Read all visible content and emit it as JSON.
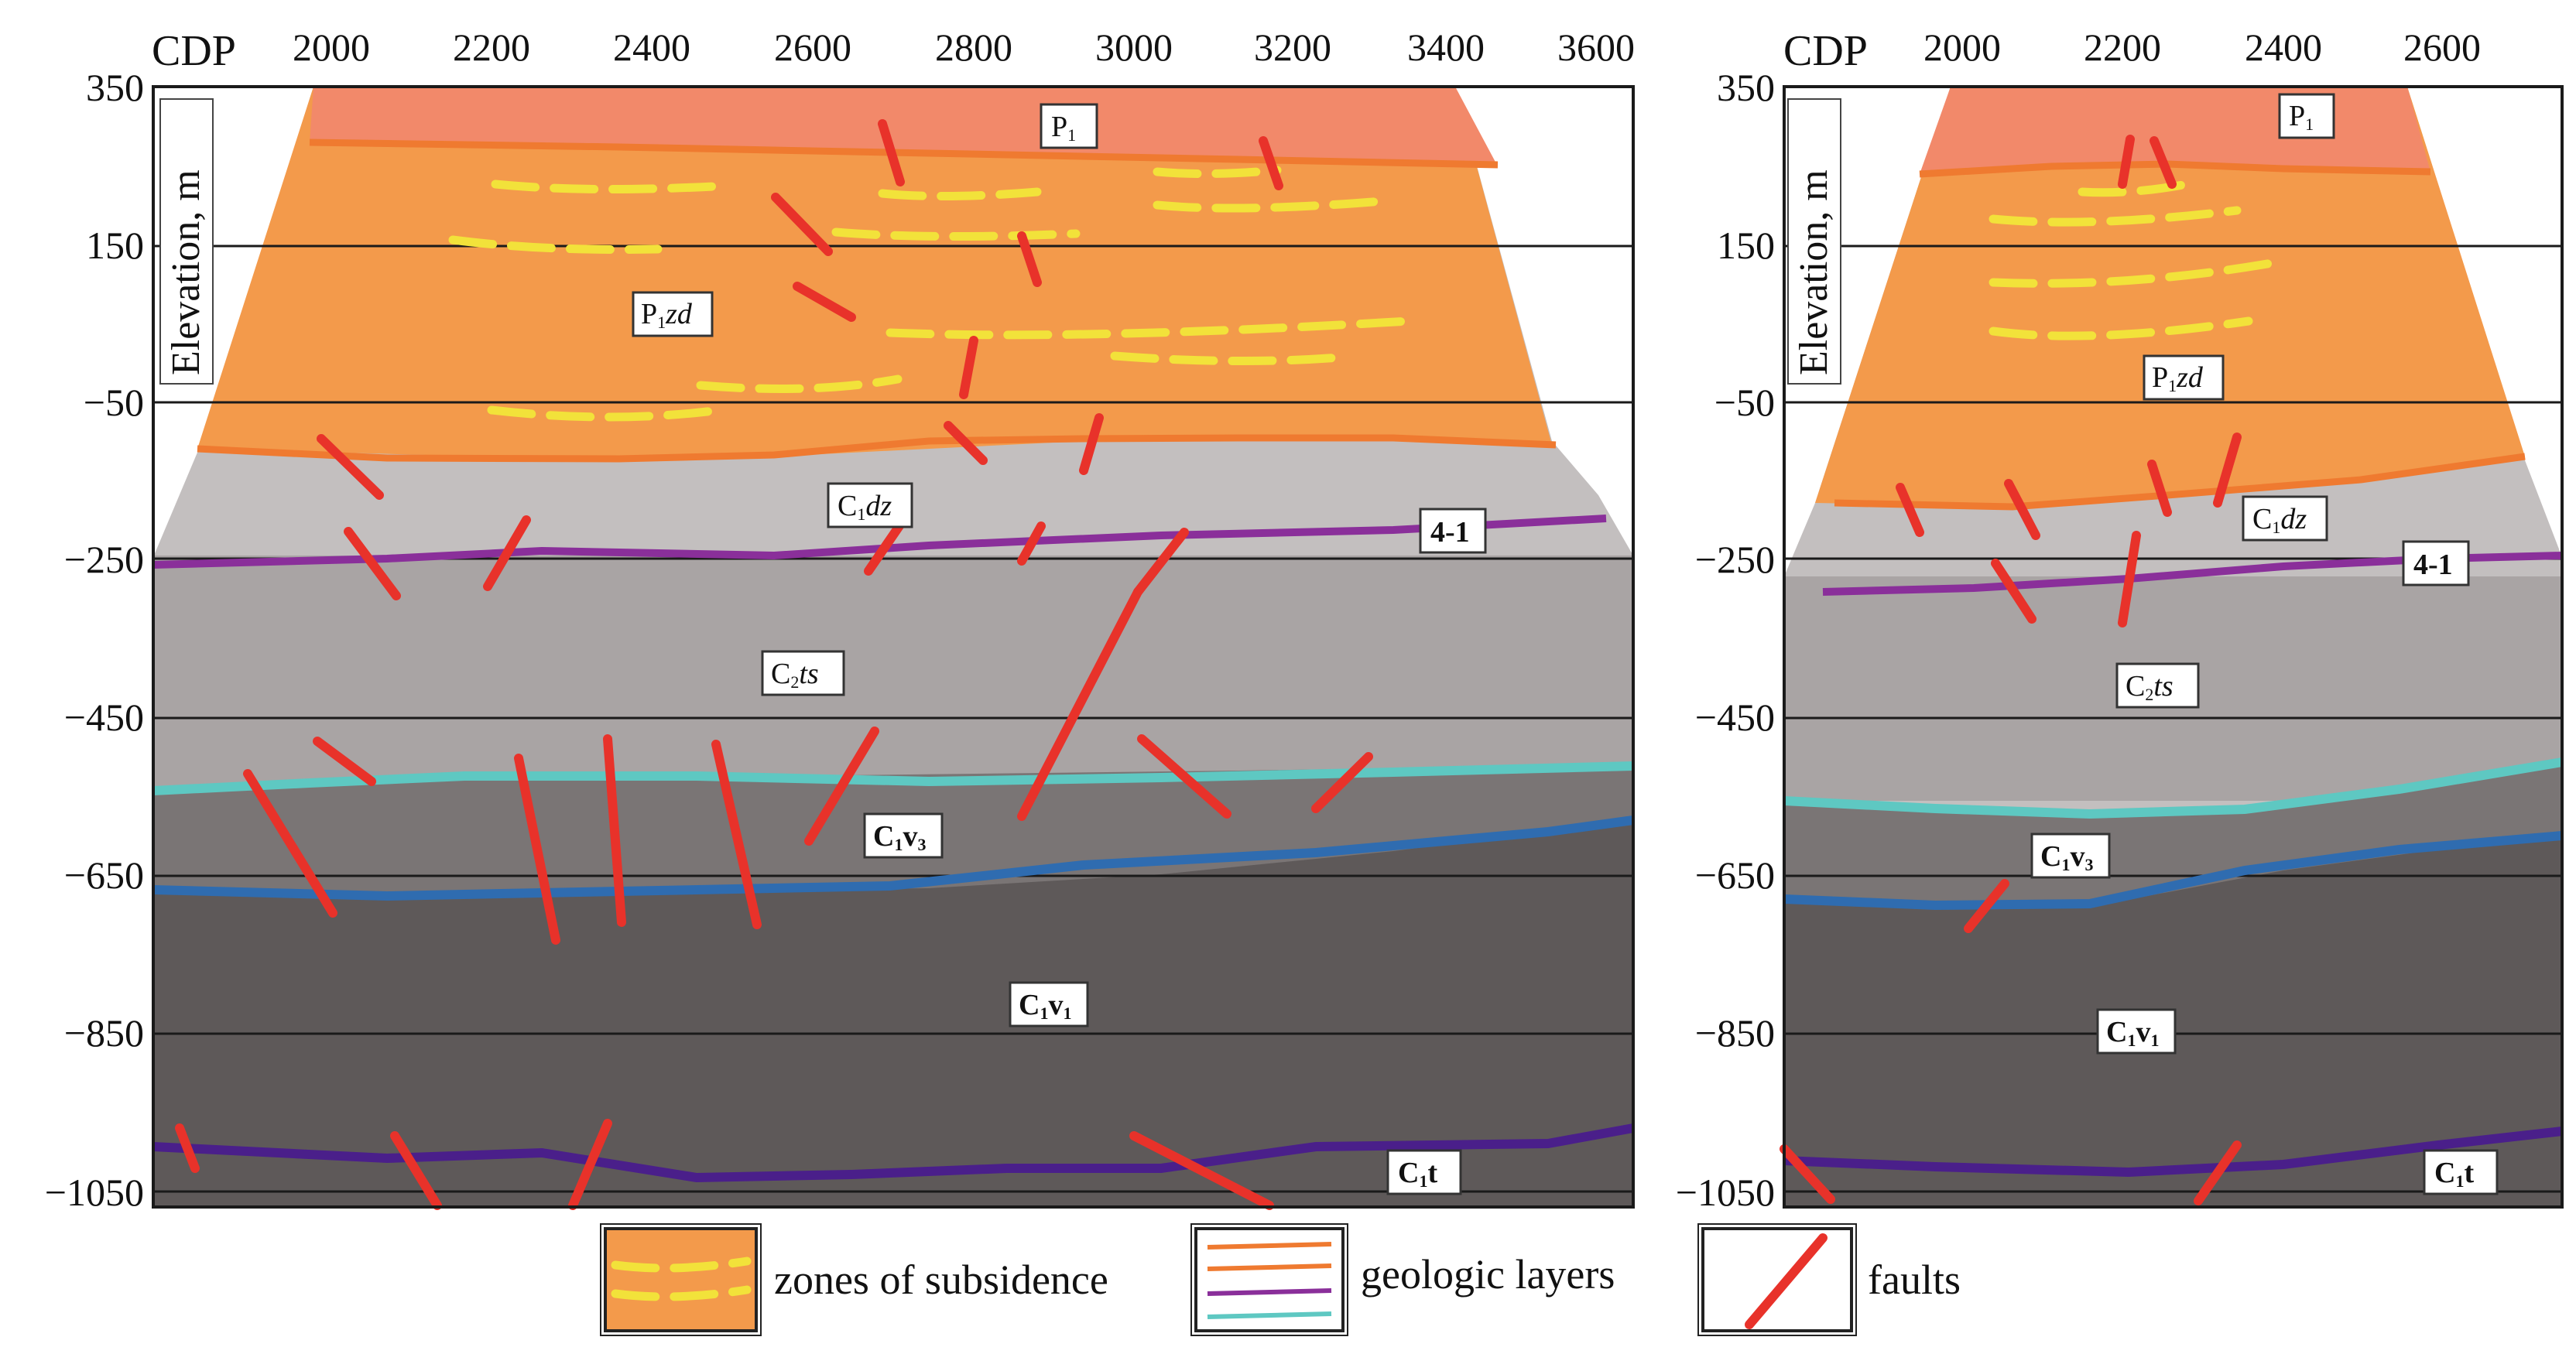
{
  "figure": {
    "panels": [
      {
        "id": "left",
        "x_label": "CDP",
        "y_label": "Elevation, m",
        "x_ticks": [
          "2000",
          "2200",
          "2400",
          "2600",
          "2800",
          "3000",
          "3200",
          "3400",
          "3600"
        ],
        "y_ticks": [
          "350",
          "150",
          "−50",
          "−250",
          "−450",
          "−650",
          "−850",
          "−1050"
        ],
        "formations": {
          "p1": "P",
          "p1zd": "P",
          "c1dz": "C",
          "label41": "4-1",
          "c2ts": "C",
          "c1v3": "C",
          "c1v1": "C",
          "c1t": "C"
        }
      },
      {
        "id": "right",
        "x_label": "CDP",
        "y_label": "Elevation, m",
        "x_ticks": [
          "2000",
          "2200",
          "2400",
          "2600"
        ],
        "y_ticks": [
          "350",
          "150",
          "−50",
          "−250",
          "−450",
          "−650",
          "−850",
          "−1050"
        ],
        "formations": {
          "p1": "P",
          "p1zd": "P",
          "c1dz": "C",
          "label41": "4-1",
          "c2ts": "C",
          "c1v3": "C",
          "c1v1": "C",
          "c1t": "C"
        }
      }
    ],
    "legend": {
      "subsidence": "zones of subsidence",
      "layers": "geologic layers",
      "faults": "faults"
    },
    "colors": {
      "subsidence_fill": "#f39a4b",
      "subsidence_upper": "#f2896a",
      "subsidence_dash": "#f2e23a",
      "layer_orange": "#ef7a30",
      "layer_purple": "#8a2f9a",
      "layer_teal": "#5ec8c2",
      "layer_blue": "#2f6cb0",
      "layer_darkpurple": "#4a1f8a",
      "fault": "#e8322a"
    }
  }
}
